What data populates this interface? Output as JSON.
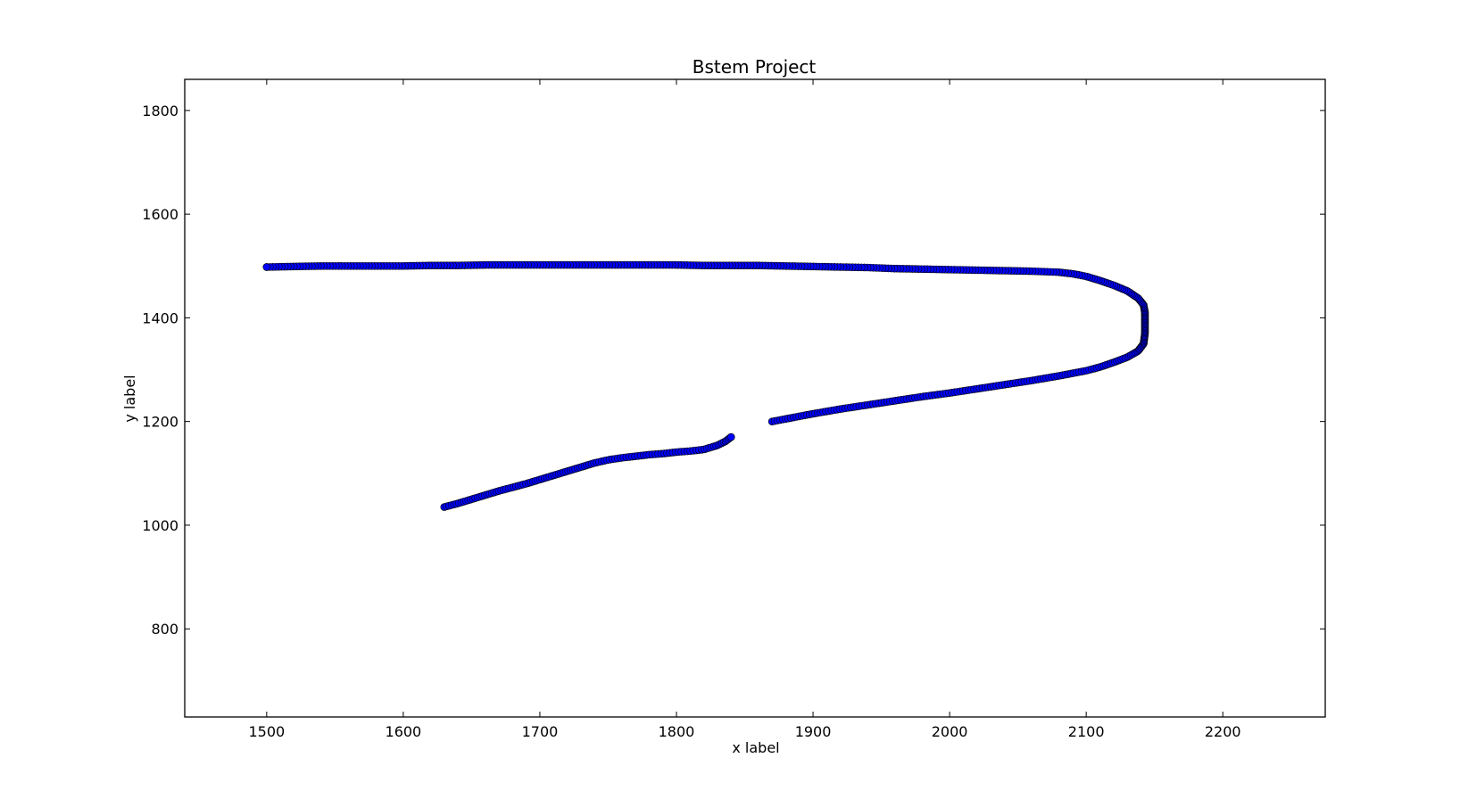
{
  "chart_data": {
    "type": "scatter",
    "title": "Bstem Project",
    "xlabel": "x label",
    "ylabel": "y label",
    "xlim": [
      1440,
      2275
    ],
    "ylim": [
      630,
      1860
    ],
    "xticks": [
      1500,
      1600,
      1700,
      1800,
      1900,
      2000,
      2100,
      2200
    ],
    "yticks": [
      800,
      1000,
      1200,
      1400,
      1600,
      1800
    ],
    "grid": false,
    "legend": "none",
    "marker_color": "#0000ff",
    "marker_edge_color": "#000000",
    "series": [
      {
        "path_points": [
          [
            1630,
            1035
          ],
          [
            1640,
            1042
          ],
          [
            1650,
            1050
          ],
          [
            1660,
            1058
          ],
          [
            1670,
            1066
          ],
          [
            1680,
            1073
          ],
          [
            1690,
            1080
          ],
          [
            1700,
            1088
          ],
          [
            1710,
            1096
          ],
          [
            1720,
            1104
          ],
          [
            1730,
            1112
          ],
          [
            1740,
            1120
          ],
          [
            1750,
            1126
          ],
          [
            1760,
            1130
          ],
          [
            1770,
            1133
          ],
          [
            1780,
            1136
          ],
          [
            1790,
            1138
          ],
          [
            1800,
            1141
          ],
          [
            1810,
            1143
          ],
          [
            1820,
            1146
          ],
          [
            1830,
            1154
          ],
          [
            1836,
            1162
          ],
          [
            1840,
            1170
          ]
        ],
        "spacing": 2.2
      },
      {
        "path_points": [
          [
            1870,
            1200
          ],
          [
            1880,
            1205
          ],
          [
            1890,
            1210
          ],
          [
            1900,
            1215
          ],
          [
            1920,
            1224
          ],
          [
            1940,
            1232
          ],
          [
            1960,
            1240
          ],
          [
            1980,
            1248
          ],
          [
            2000,
            1255
          ],
          [
            2020,
            1263
          ],
          [
            2040,
            1271
          ],
          [
            2060,
            1279
          ],
          [
            2080,
            1288
          ],
          [
            2100,
            1298
          ],
          [
            2110,
            1305
          ],
          [
            2120,
            1314
          ],
          [
            2130,
            1324
          ],
          [
            2138,
            1336
          ],
          [
            2142,
            1350
          ],
          [
            2143,
            1370
          ],
          [
            2143,
            1390
          ],
          [
            2143,
            1410
          ],
          [
            2142,
            1425
          ],
          [
            2138,
            1438
          ],
          [
            2130,
            1452
          ],
          [
            2120,
            1463
          ],
          [
            2110,
            1472
          ],
          [
            2100,
            1480
          ],
          [
            2090,
            1485
          ],
          [
            2080,
            1488
          ],
          [
            2060,
            1490
          ],
          [
            2040,
            1491
          ],
          [
            2020,
            1492
          ],
          [
            2000,
            1493
          ],
          [
            1980,
            1494
          ],
          [
            1960,
            1495
          ],
          [
            1940,
            1497
          ],
          [
            1920,
            1498
          ],
          [
            1900,
            1499
          ],
          [
            1880,
            1500
          ],
          [
            1860,
            1501
          ],
          [
            1840,
            1501
          ],
          [
            1820,
            1501
          ],
          [
            1800,
            1502
          ],
          [
            1780,
            1502
          ],
          [
            1760,
            1502
          ],
          [
            1740,
            1502
          ],
          [
            1720,
            1502
          ],
          [
            1700,
            1502
          ],
          [
            1680,
            1502
          ],
          [
            1660,
            1502
          ],
          [
            1640,
            1501
          ],
          [
            1620,
            1501
          ],
          [
            1600,
            1500
          ],
          [
            1580,
            1500
          ],
          [
            1560,
            1500
          ],
          [
            1540,
            1500
          ],
          [
            1520,
            1499
          ],
          [
            1500,
            1498
          ]
        ],
        "spacing": 2.2
      }
    ]
  }
}
